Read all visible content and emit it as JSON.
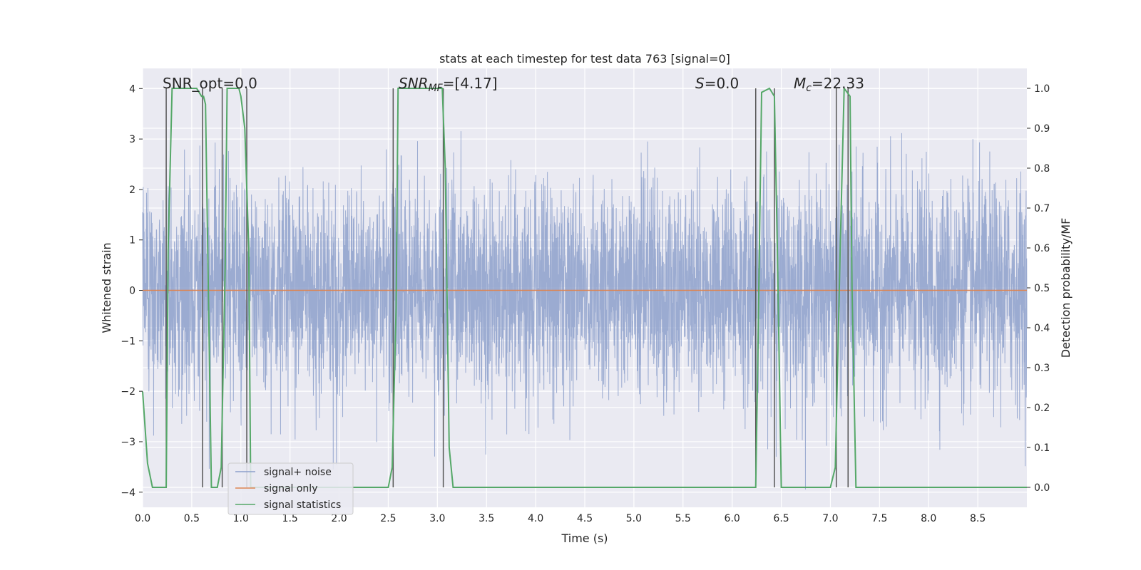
{
  "chart_data": {
    "type": "line",
    "title": "stats at each timestep for test data 763 [signal=0]",
    "xlabel": "Time (s)",
    "ylabel": "Whitened strain",
    "y2label": "Detection probability/MF",
    "xlim": [
      0,
      9.0
    ],
    "ylim": [
      -4.3,
      4.4
    ],
    "y2lim": [
      -0.05,
      1.05
    ],
    "x_ticks": [
      0.0,
      0.5,
      1.0,
      1.5,
      2.0,
      2.5,
      3.0,
      3.5,
      4.0,
      4.5,
      5.0,
      5.5,
      6.0,
      6.5,
      7.0,
      7.5,
      8.0,
      8.5
    ],
    "x_tick_labels": [
      "0.0",
      "0.5",
      "1.0",
      "1.5",
      "2.0",
      "2.5",
      "3.0",
      "3.5",
      "4.0",
      "4.5",
      "5.0",
      "5.5",
      "6.0",
      "6.5",
      "7.0",
      "7.5",
      "8.0",
      "8.5"
    ],
    "y_ticks": [
      4,
      3,
      2,
      1,
      0,
      -1,
      -2,
      -3,
      -4
    ],
    "y_tick_labels": [
      "4",
      "3",
      "2",
      "1",
      "0",
      "−1",
      "−2",
      "−3",
      "−4"
    ],
    "y2_ticks": [
      1.0,
      0.9,
      0.8,
      0.7,
      0.6,
      0.5,
      0.4,
      0.3,
      0.2,
      0.1,
      0.0
    ],
    "y2_tick_labels": [
      "1.0",
      "0.9",
      "0.8",
      "0.7",
      "0.6",
      "0.5",
      "0.4",
      "0.3",
      "0.2",
      "0.1",
      "0.0"
    ],
    "grid": true,
    "legend_placement": "lower-left",
    "legend": [
      "signal+ noise",
      "signal only",
      "signal statistics"
    ],
    "annotations": [
      {
        "text": "SNR_opt=0.0"
      },
      {
        "main": "SNR",
        "sub": "MF",
        "rest": "=[4.17]"
      },
      {
        "main": "S",
        "rest": "=0.0"
      },
      {
        "main": "M",
        "sub": "c",
        "rest": "=22.33"
      }
    ],
    "noise_series": {
      "name": "signal+ noise",
      "color": "#8da0cb",
      "sample_rate_hz": 500,
      "typical_abs_amplitude": 1.5,
      "peak_abs_amplitude": 4.0
    },
    "signal_only": {
      "name": "signal only",
      "color": "#dd8452",
      "x": [
        0,
        9.0
      ],
      "y": [
        0,
        0
      ]
    },
    "signal_statistics": {
      "name": "signal statistics",
      "color": "#55a868",
      "axis": "y2",
      "x": [
        0.0,
        0.05,
        0.1,
        0.24,
        0.26,
        0.3,
        0.55,
        0.6,
        0.62,
        0.64,
        0.7,
        0.76,
        0.8,
        0.84,
        0.86,
        0.98,
        1.0,
        1.04,
        1.08,
        1.1,
        2.5,
        2.54,
        2.58,
        2.6,
        3.05,
        3.08,
        3.12,
        3.16,
        3.3,
        6.24,
        6.26,
        6.3,
        6.38,
        6.43,
        6.46,
        6.5,
        7.0,
        7.05,
        7.1,
        7.14,
        7.2,
        7.22,
        7.26,
        8.9,
        9.0
      ],
      "y": [
        0.24,
        0.06,
        0.0,
        0.0,
        0.6,
        1.0,
        1.0,
        0.98,
        0.98,
        0.96,
        0.0,
        0.0,
        0.05,
        0.55,
        1.0,
        1.0,
        0.98,
        0.9,
        0.6,
        0.0,
        0.0,
        0.05,
        0.45,
        1.0,
        1.0,
        0.8,
        0.1,
        0.0,
        0.0,
        0.0,
        0.3,
        0.99,
        1.0,
        0.98,
        0.6,
        0.0,
        0.0,
        0.05,
        0.6,
        1.0,
        0.98,
        0.5,
        0.0,
        0.0,
        0.0
      ]
    },
    "vertical_markers": {
      "color": "#555555",
      "x": [
        0.24,
        0.61,
        0.81,
        1.06,
        2.55,
        3.06,
        6.24,
        6.43,
        7.06,
        7.18
      ]
    }
  },
  "colors": {
    "axes_background": "#eaeaf2",
    "grid": "#ffffff",
    "text": "#262626"
  }
}
